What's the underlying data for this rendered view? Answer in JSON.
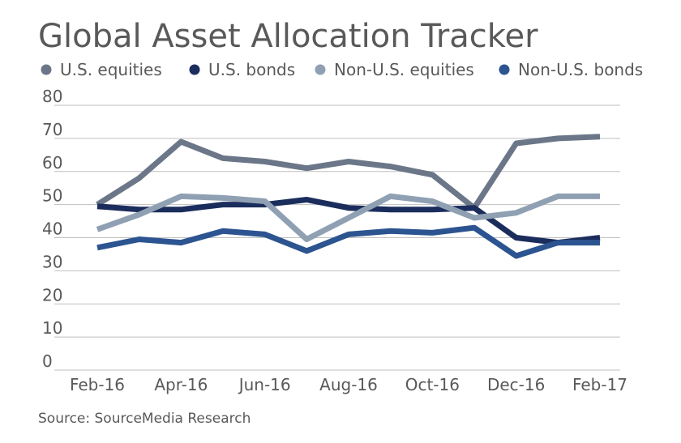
{
  "chart_data": {
    "type": "line",
    "title": "Global Asset Allocation Tracker",
    "source": "Source: SourceMedia Research",
    "xlabel": "",
    "ylabel": "",
    "ylim": [
      0,
      80
    ],
    "yticks": [
      0,
      10,
      20,
      30,
      40,
      50,
      60,
      70,
      80
    ],
    "grid": true,
    "legend_position": "top",
    "x": [
      "Feb-16",
      "Mar-16",
      "Apr-16",
      "May-16",
      "Jun-16",
      "Jul-16",
      "Aug-16",
      "Sep-16",
      "Oct-16",
      "Nov-16",
      "Dec-16",
      "Jan-17",
      "Feb-17"
    ],
    "x_tick_labels": [
      "Feb-16",
      "Apr-16",
      "Jun-16",
      "Aug-16",
      "Oct-16",
      "Dec-16",
      "Feb-17"
    ],
    "series": [
      {
        "name": "U.S. equities",
        "color": "#6b7788",
        "values": [
          50,
          58,
          69,
          64,
          63,
          61,
          63,
          61.5,
          59,
          49,
          68.5,
          70,
          70.5
        ]
      },
      {
        "name": "U.S. bonds",
        "color": "#1b2d5c",
        "values": [
          49.5,
          48.5,
          48.5,
          50,
          50,
          51.5,
          49,
          48.5,
          48.5,
          49,
          40,
          38.5,
          40
        ]
      },
      {
        "name": "Non-U.S. equities",
        "color": "#8fa0b3",
        "values": [
          42.5,
          47,
          52.5,
          52,
          51,
          39.5,
          46,
          52.5,
          51,
          46,
          47.5,
          52.5,
          52.5
        ]
      },
      {
        "name": "Non-U.S. bonds",
        "color": "#2c5490",
        "values": [
          37,
          39.5,
          38.5,
          42,
          41,
          36,
          41,
          42,
          41.5,
          43,
          34.5,
          38.5,
          38.5
        ]
      }
    ]
  }
}
